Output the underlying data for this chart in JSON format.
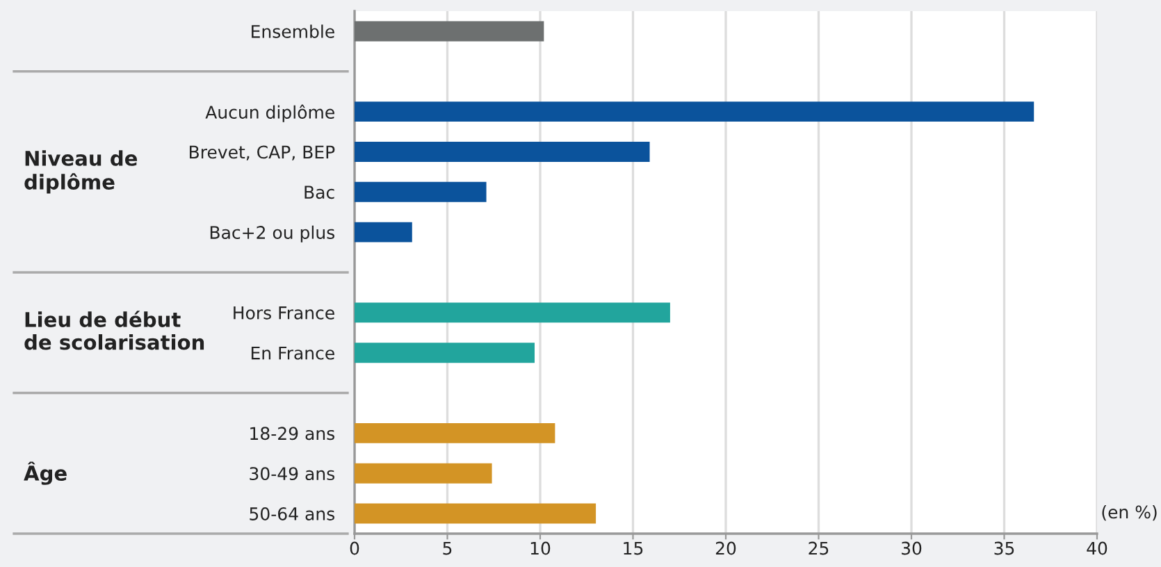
{
  "chart_data": {
    "type": "bar",
    "orientation": "horizontal",
    "categories": [
      "Ensemble",
      null,
      "Aucun diplôme",
      "Brevet, CAP, BEP",
      "Bac",
      "Bac+2 ou plus",
      null,
      "Hors France",
      "En France",
      null,
      "18-29 ans",
      "30-49 ans",
      "50-64 ans"
    ],
    "values": [
      10.2,
      null,
      36.6,
      15.9,
      7.1,
      3.1,
      null,
      17.0,
      9.7,
      null,
      10.8,
      7.4,
      13.0
    ],
    "colors": [
      "#6d7070",
      null,
      "#0b539c",
      "#0b539c",
      "#0b539c",
      "#0b539c",
      null,
      "#22a59d",
      "#22a59d",
      null,
      "#d39425",
      "#d39425",
      "#d39425"
    ],
    "xlim": [
      0,
      40
    ],
    "xticks": [
      0,
      5,
      10,
      15,
      20,
      25,
      30,
      35,
      40
    ],
    "grid": "x",
    "annotations": [
      "Niveau de\ndiplôme",
      "Lieu de début\nde scolarisation",
      "Âge",
      "(en %)"
    ]
  }
}
